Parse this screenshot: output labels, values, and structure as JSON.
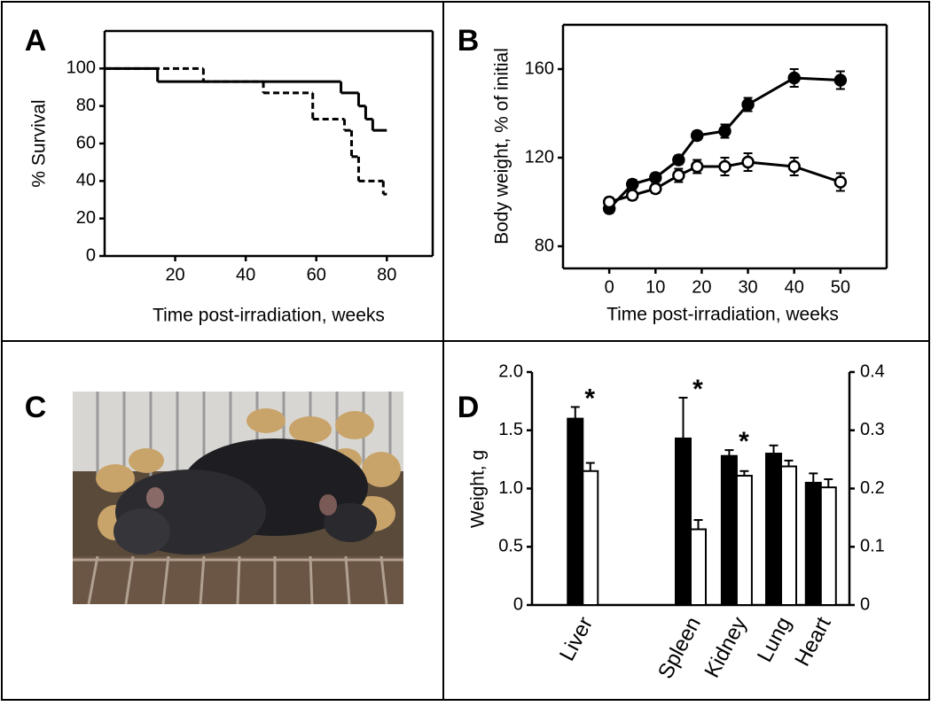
{
  "chart_data": [
    {
      "type": "step",
      "panel": "A",
      "y_label": "% Survival",
      "x_label": "Time post-irradiation, weeks",
      "xlim": [
        0,
        93
      ],
      "ylim": [
        0,
        120
      ],
      "xticks": [
        20,
        40,
        60,
        80
      ],
      "yticks": [
        0,
        20,
        40,
        60,
        80,
        100
      ],
      "series": [
        {
          "color": "#000000",
          "dash": false,
          "x": [
            0,
            15,
            67,
            72,
            74,
            76,
            80
          ],
          "values": [
            100,
            93,
            87,
            80,
            73,
            67,
            67
          ]
        },
        {
          "color": "#000000",
          "dash": true,
          "x": [
            0,
            28,
            45,
            59,
            68,
            70,
            72,
            79,
            80
          ],
          "values": [
            100,
            93,
            87,
            73,
            67,
            53,
            40,
            33,
            33
          ]
        }
      ]
    },
    {
      "type": "line",
      "panel": "B",
      "y_label": "Body weight, % of initial",
      "x_label": "Time post-irradiation, weeks",
      "xlim": [
        -10,
        60
      ],
      "ylim": [
        70,
        180
      ],
      "xticks": [
        0,
        10,
        20,
        30,
        40,
        50
      ],
      "yticks": [
        80,
        120,
        160
      ],
      "x": [
        0,
        5,
        10,
        15,
        19,
        25,
        30,
        40,
        50
      ],
      "series": [
        {
          "color": "#000000",
          "marker_fill": "#000000",
          "values": [
            97,
            108,
            111,
            119,
            130,
            132,
            144,
            156,
            155
          ],
          "errors": [
            2,
            2,
            2,
            2,
            2,
            3,
            3,
            4,
            4
          ]
        },
        {
          "color": "#000000",
          "marker_fill": "#ffffff",
          "values": [
            100,
            103,
            106,
            112,
            116,
            116,
            118,
            116,
            109
          ],
          "errors": [
            2,
            2,
            2,
            3,
            3,
            4,
            4,
            4,
            4
          ]
        }
      ]
    },
    {
      "type": "image",
      "panel": "C"
    },
    {
      "type": "bar",
      "panel": "D",
      "y_label": "Weight, g",
      "ylim": [
        0,
        2
      ],
      "yticks": [
        0,
        0.5,
        {
          "value": 1,
          "label": "1.0"
        },
        1.5,
        {
          "value": 2,
          "label": "2.0"
        }
      ],
      "y2lim": [
        0,
        0.4
      ],
      "y2ticks": [
        0,
        0.1,
        0.2,
        0.3,
        0.4
      ],
      "categories": [
        "Liver",
        "Spleen",
        "Kidney",
        "Lung",
        "Heart"
      ],
      "significance": [
        "*",
        "*",
        "*",
        null,
        null
      ],
      "series": [
        {
          "color": "#000000",
          "values": [
            1.6,
            null,
            null,
            null,
            null
          ],
          "errors": [
            0.1,
            null,
            null,
            null,
            null
          ]
        },
        {
          "color": "#ffffff",
          "values": [
            1.15,
            null,
            null,
            null,
            null
          ],
          "errors": [
            0.07,
            null,
            null,
            null,
            null
          ]
        },
        {
          "color": "#000000",
          "axis": "y2",
          "values": [
            null,
            0.286,
            0.256,
            0.26,
            0.21
          ],
          "errors": [
            null,
            0.07,
            0.01,
            0.014,
            0.016
          ]
        },
        {
          "color": "#ffffff",
          "axis": "y2",
          "values": [
            null,
            0.13,
            0.222,
            0.238,
            0.202
          ],
          "errors": [
            null,
            0.016,
            0.008,
            0.01,
            0.014
          ]
        }
      ]
    }
  ]
}
